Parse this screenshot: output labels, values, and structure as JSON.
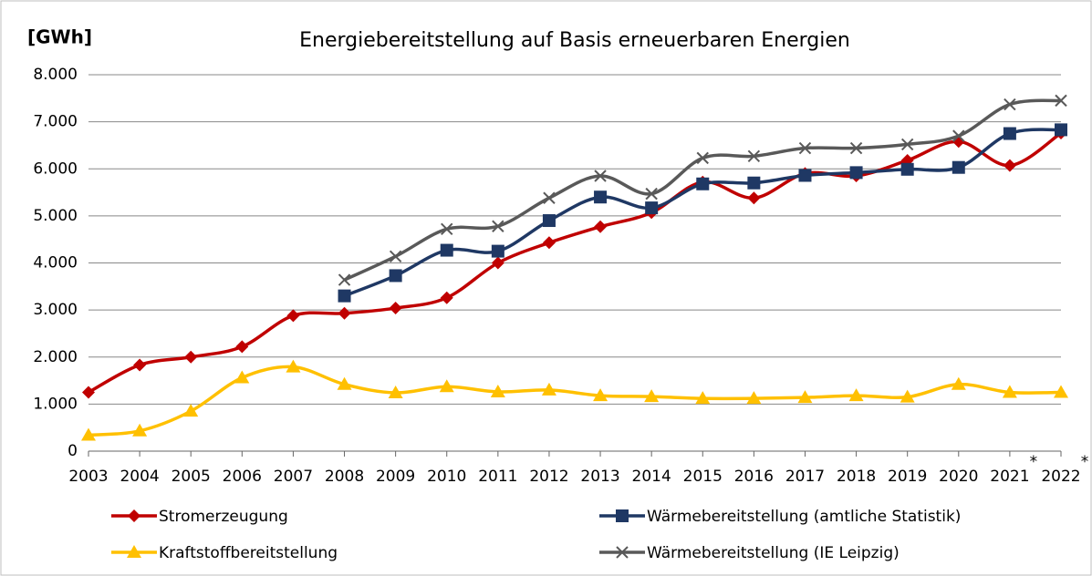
{
  "chart_data": {
    "type": "line",
    "title": "Energiebereitstellung auf Basis erneuerbaren Energien",
    "y_label": "[GWh]",
    "categories": [
      "2003",
      "2004",
      "2005",
      "2006",
      "2007",
      "2008",
      "2009",
      "2010",
      "2011",
      "2012",
      "2013",
      "2014",
      "2015",
      "2016",
      "2017",
      "2018",
      "2019",
      "2020",
      "2021",
      "2022"
    ],
    "annotations": [
      "*",
      "*"
    ],
    "series": [
      {
        "name": "Stromerzeugung",
        "color": "#c00000",
        "marker": "diamond",
        "values": [
          1250,
          1830,
          2000,
          2220,
          2880,
          2930,
          3040,
          3260,
          4000,
          4430,
          4770,
          5070,
          5720,
          5380,
          5900,
          5850,
          6180,
          6580,
          6070,
          6760
        ]
      },
      {
        "name": "Wärmebereitstellung (amtliche Statistik)",
        "color": "#1f3864",
        "marker": "square",
        "values": [
          null,
          null,
          null,
          null,
          null,
          3300,
          3730,
          4270,
          4250,
          4900,
          5400,
          5170,
          5680,
          5700,
          5860,
          5920,
          5990,
          6030,
          6750,
          6830
        ]
      },
      {
        "name": "Kraftstoffbereitstellung",
        "color": "#ffc000",
        "marker": "triangle",
        "values": [
          340,
          430,
          850,
          1560,
          1790,
          1420,
          1240,
          1370,
          1260,
          1300,
          1180,
          1160,
          1120,
          1120,
          1140,
          1180,
          1150,
          1420,
          1250,
          1250
        ]
      },
      {
        "name": "Wärmebereitstellung (IE Leipzig)",
        "color": "#595959",
        "marker": "x",
        "values": [
          null,
          null,
          null,
          null,
          null,
          3640,
          4140,
          4720,
          4780,
          5380,
          5850,
          5470,
          6230,
          6270,
          6440,
          6440,
          6520,
          6700,
          7370,
          7450
        ]
      }
    ],
    "ylim": [
      0,
      8000
    ],
    "yticks": [
      0,
      {
        "value": 1000,
        "label": "1.000"
      },
      {
        "value": 2000,
        "label": "2.000"
      },
      {
        "value": 3000,
        "label": "3.000"
      },
      {
        "value": 4000,
        "label": "4.000"
      },
      {
        "value": 5000,
        "label": "5.000"
      },
      {
        "value": 6000,
        "label": "6.000"
      },
      {
        "value": 7000,
        "label": "7.000"
      },
      {
        "value": 8000,
        "label": "8.000"
      }
    ],
    "grid": true,
    "smooth": true,
    "legend": "bottom"
  }
}
